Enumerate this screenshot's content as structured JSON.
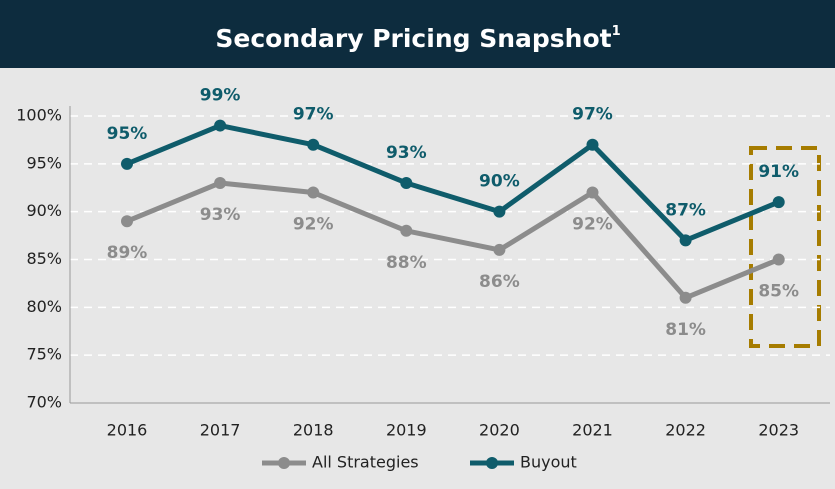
{
  "chart_data": {
    "type": "line",
    "title": "Secondary Pricing Snapshot",
    "title_note": "1",
    "categories": [
      "2016",
      "2017",
      "2018",
      "2019",
      "2020",
      "2021",
      "2022",
      "2023"
    ],
    "series": [
      {
        "name": "All Strategies",
        "color": "#8c8c8c",
        "values": [
          89,
          93,
          92,
          88,
          86,
          92,
          81,
          85
        ],
        "value_labels": [
          "89%",
          "93%",
          "92%",
          "88%",
          "86%",
          "92%",
          "81%",
          "85%"
        ]
      },
      {
        "name": "Buyout",
        "color": "#0f5c6b",
        "values": [
          95,
          99,
          97,
          93,
          90,
          97,
          87,
          91
        ],
        "value_labels": [
          "95%",
          "99%",
          "97%",
          "93%",
          "90%",
          "97%",
          "87%",
          "91%"
        ]
      }
    ],
    "ylim": [
      70,
      100
    ],
    "yticks": [
      {
        "value": 70,
        "label": "70%"
      },
      {
        "value": 75,
        "label": "75%"
      },
      {
        "value": 80,
        "label": "80%"
      },
      {
        "value": 85,
        "label": "85%"
      },
      {
        "value": 90,
        "label": "90%"
      },
      {
        "value": 95,
        "label": "95%"
      },
      {
        "value": 100,
        "label": "100%"
      }
    ],
    "grid": true,
    "legend": "bottom"
  }
}
